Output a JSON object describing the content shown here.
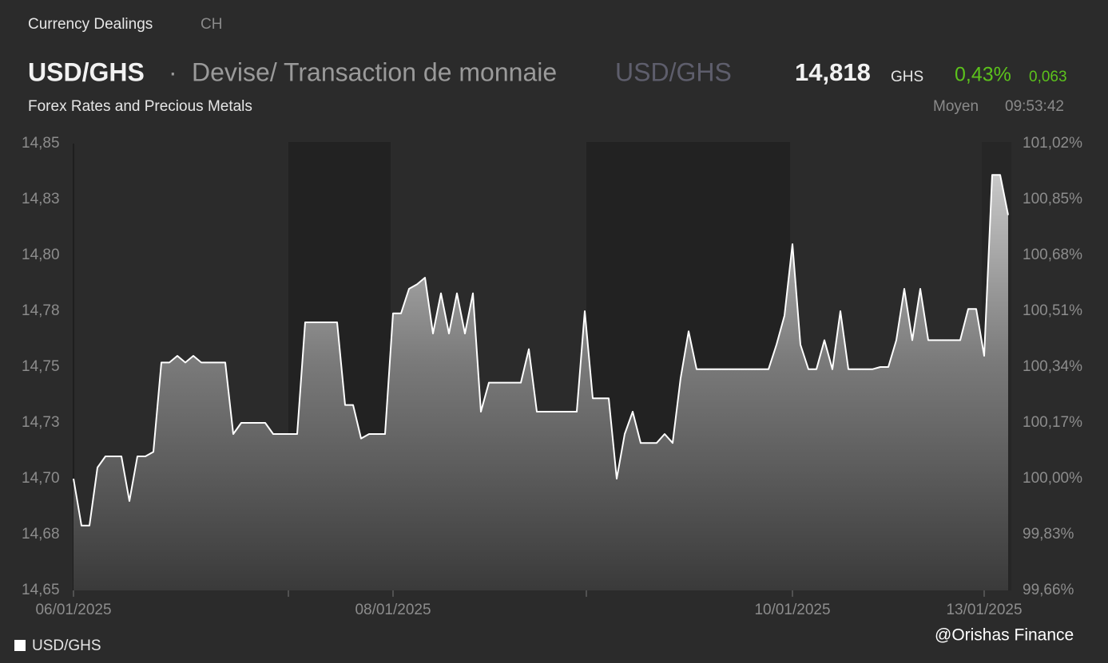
{
  "header": {
    "section": "Currency Dealings",
    "region": "CH",
    "symbol": "USD/GHS",
    "separator": "·",
    "description": "Devise/ Transaction de monnaie",
    "symbol_alt": "USD/GHS",
    "price": "14,818",
    "currency": "GHS",
    "change_pct": "0,43%",
    "change_abs": "0,063",
    "source": "Forex Rates and Precious Metals",
    "price_type": "Moyen",
    "time": "09:53:42"
  },
  "watermark": "@Orishas Finance",
  "chart_data": {
    "type": "area",
    "categories": [
      "06/01/2025",
      null,
      null,
      null,
      null,
      null,
      null,
      null,
      null,
      null,
      null,
      null,
      null,
      null,
      null,
      null,
      null,
      null,
      null,
      null,
      null,
      null,
      null,
      null,
      null,
      null,
      null,
      null,
      null,
      null,
      null,
      null,
      null,
      null,
      null,
      null,
      null,
      null,
      null,
      null,
      "08/01/2025",
      null,
      null,
      null,
      null,
      null,
      null,
      null,
      null,
      null,
      null,
      null,
      null,
      null,
      null,
      null,
      null,
      null,
      null,
      null,
      null,
      null,
      null,
      null,
      null,
      null,
      null,
      null,
      null,
      null,
      null,
      null,
      null,
      null,
      null,
      null,
      null,
      null,
      null,
      null,
      null,
      null,
      null,
      null,
      null,
      null,
      null,
      null,
      null,
      null,
      "10/01/2025",
      null,
      null,
      null,
      null,
      null,
      null,
      null,
      null,
      null,
      null,
      null,
      null,
      null,
      null,
      null,
      null,
      null,
      null,
      null,
      null,
      null,
      null,
      null,
      "13/01/2025",
      null,
      null,
      null
    ],
    "series": [
      {
        "name": "USD/GHS",
        "color": "#ffffff",
        "values": [
          14.7,
          14.679,
          14.679,
          14.705,
          14.71,
          14.71,
          14.71,
          14.69,
          14.71,
          14.71,
          14.712,
          14.752,
          14.752,
          14.755,
          14.752,
          14.755,
          14.752,
          14.752,
          14.752,
          14.752,
          14.72,
          14.725,
          14.725,
          14.725,
          14.725,
          14.72,
          14.72,
          14.72,
          14.72,
          14.77,
          14.77,
          14.77,
          14.77,
          14.77,
          14.733,
          14.733,
          14.718,
          14.72,
          14.72,
          14.72,
          14.774,
          14.774,
          14.785,
          14.787,
          14.79,
          14.765,
          14.783,
          14.765,
          14.783,
          14.765,
          14.783,
          14.73,
          14.743,
          14.743,
          14.743,
          14.743,
          14.743,
          14.758,
          14.73,
          14.73,
          14.73,
          14.73,
          14.73,
          14.73,
          14.775,
          14.736,
          14.736,
          14.736,
          14.7,
          14.72,
          14.73,
          14.716,
          14.716,
          14.716,
          14.72,
          14.716,
          14.745,
          14.766,
          14.749,
          14.749,
          14.749,
          14.749,
          14.749,
          14.749,
          14.749,
          14.749,
          14.749,
          14.749,
          14.76,
          14.773,
          14.805,
          14.76,
          14.749,
          14.749,
          14.762,
          14.749,
          14.775,
          14.749,
          14.749,
          14.749,
          14.749,
          14.75,
          14.75,
          14.762,
          14.785,
          14.762,
          14.785,
          14.762,
          14.762,
          14.762,
          14.762,
          14.762,
          14.776,
          14.776,
          14.755,
          14.836,
          14.836,
          14.818
        ]
      }
    ],
    "ylim": [
      14.65,
      14.85
    ],
    "yticks": [
      {
        "value": 14.65,
        "label": "14,65"
      },
      {
        "value": 14.675,
        "label": "14,68"
      },
      {
        "value": 14.7,
        "label": "14,70"
      },
      {
        "value": 14.725,
        "label": "14,73"
      },
      {
        "value": 14.75,
        "label": "14,75"
      },
      {
        "value": 14.775,
        "label": "14,78"
      },
      {
        "value": 14.8,
        "label": "14,80"
      },
      {
        "value": 14.825,
        "label": "14,83"
      },
      {
        "value": 14.85,
        "label": "14,85"
      }
    ],
    "y2lim": [
      99.66,
      101.02
    ],
    "y2ticks": [
      {
        "value": 99.66,
        "label": "99,66%"
      },
      {
        "value": 99.83,
        "label": "99,83%"
      },
      {
        "value": 100.0,
        "label": "100,00%"
      },
      {
        "value": 100.17,
        "label": "100,17%"
      },
      {
        "value": 100.34,
        "label": "100,34%"
      },
      {
        "value": 100.51,
        "label": "100,51%"
      },
      {
        "value": 100.68,
        "label": "100,68%"
      },
      {
        "value": 100.85,
        "label": "100,85%"
      },
      {
        "value": 101.02,
        "label": "101,02%"
      }
    ],
    "grid": false,
    "legend": "bottom-left"
  }
}
